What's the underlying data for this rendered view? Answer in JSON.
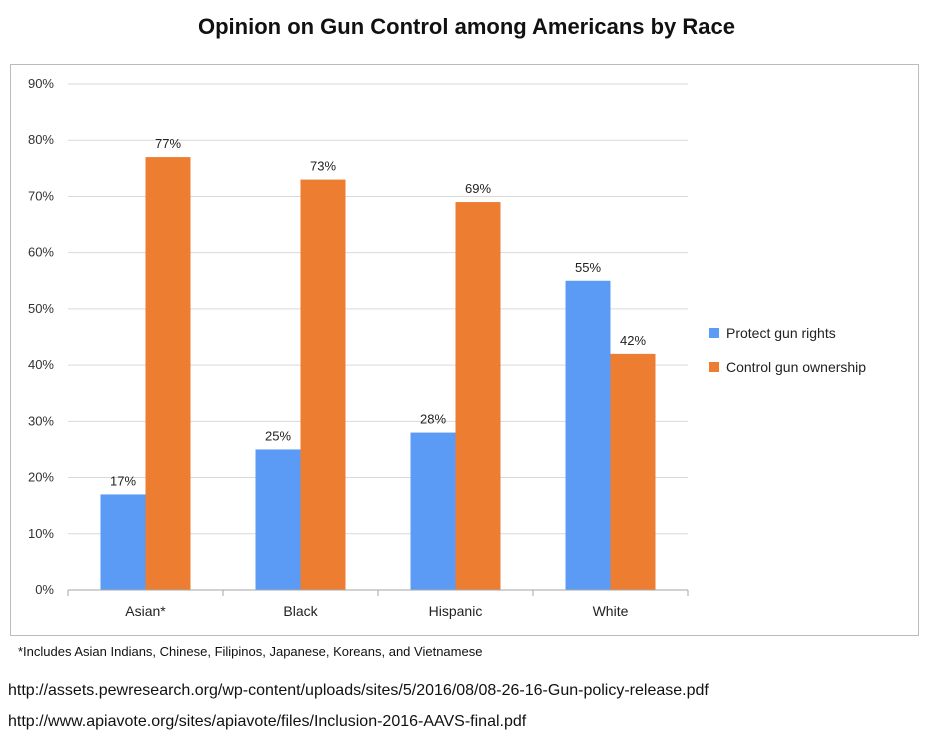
{
  "chart_data": {
    "type": "bar",
    "title": "Opinion on Gun Control among Americans by Race",
    "categories": [
      "Asian*",
      "Black",
      "Hispanic",
      "White"
    ],
    "series": [
      {
        "name": "Protect gun rights",
        "color": "#5b9bf5",
        "values": [
          17,
          25,
          28,
          55
        ]
      },
      {
        "name": "Control gun ownership",
        "color": "#ed7d31",
        "values": [
          77,
          73,
          69,
          42
        ]
      }
    ],
    "yticks": [
      "0%",
      "10%",
      "20%",
      "30%",
      "40%",
      "50%",
      "60%",
      "70%",
      "80%",
      "90%"
    ],
    "ylim": [
      0,
      90
    ],
    "value_suffix": "%",
    "grid": true,
    "legend_position": "right"
  },
  "footnote": "*Includes Asian Indians, Chinese, Filipinos, Japanese, Koreans, and Vietnamese",
  "sources": [
    "http://assets.pewresearch.org/wp-content/uploads/sites/5/2016/08/08-26-16-Gun-policy-release.pdf",
    "http://www.apiavote.org/sites/apiavote/files/Inclusion-2016-AAVS-final.pdf"
  ]
}
